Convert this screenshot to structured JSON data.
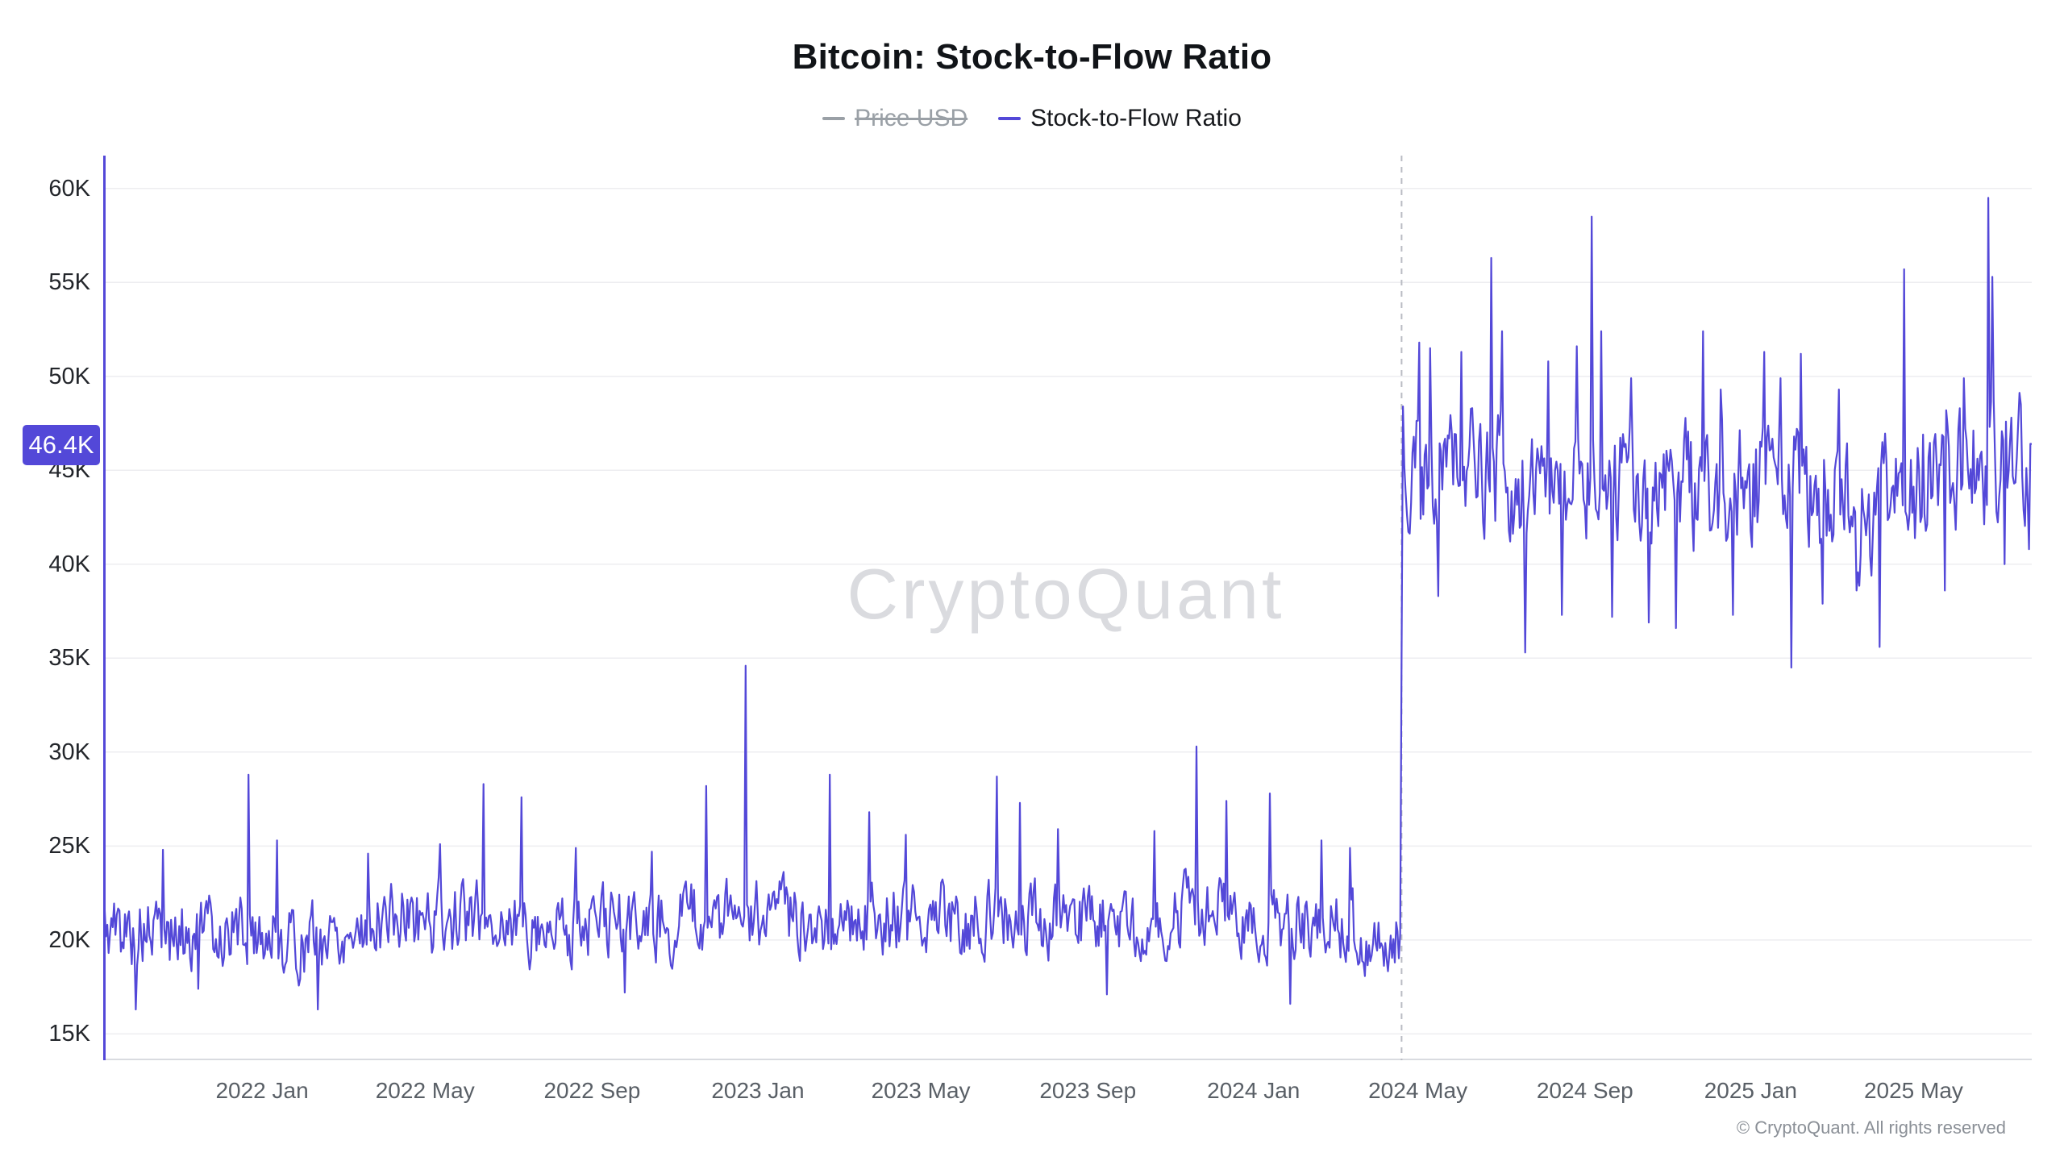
{
  "footer": {
    "copyright": "© CryptoQuant. All rights reserved"
  },
  "watermark": {
    "text": "CryptoQuant"
  },
  "chart_data": {
    "type": "line",
    "title": "Bitcoin: Stock-to-Flow Ratio",
    "xlabel": "",
    "ylabel": "",
    "grid": "horizontal",
    "legend_position": "top",
    "colors": {
      "line": "#5348d8",
      "disabled_legend": "#9aa0a6",
      "grid": "#ededf0",
      "axis_bottom": "#d9dbe0",
      "halving_line": "#b9bcc3",
      "watermark": "#dadbdf"
    },
    "legend": [
      {
        "label": "Price USD",
        "color": "#9aa0a6",
        "disabled": true
      },
      {
        "label": "Stock-to-Flow Ratio",
        "color": "#5348d8",
        "disabled": false
      }
    ],
    "ylim": [
      13600,
      61750
    ],
    "y_ticks": [
      {
        "value": 15000,
        "label": "15K"
      },
      {
        "value": 20000,
        "label": "20K"
      },
      {
        "value": 25000,
        "label": "25K"
      },
      {
        "value": 30000,
        "label": "30K"
      },
      {
        "value": 35000,
        "label": "35K"
      },
      {
        "value": 40000,
        "label": "40K"
      },
      {
        "value": 45000,
        "label": "45K"
      },
      {
        "value": 50000,
        "label": "50K"
      },
      {
        "value": 55000,
        "label": "55K"
      },
      {
        "value": 60000,
        "label": "60K"
      }
    ],
    "x_range": {
      "start": "2021-09-06",
      "end": "2025-07-27"
    },
    "x_ticks": [
      {
        "date": "2022-01-01",
        "label": "2022 Jan"
      },
      {
        "date": "2022-05-01",
        "label": "2022 May"
      },
      {
        "date": "2022-09-01",
        "label": "2022 Sep"
      },
      {
        "date": "2023-01-01",
        "label": "2023 Jan"
      },
      {
        "date": "2023-05-01",
        "label": "2023 May"
      },
      {
        "date": "2023-09-01",
        "label": "2023 Sep"
      },
      {
        "date": "2024-01-01",
        "label": "2024 Jan"
      },
      {
        "date": "2024-05-01",
        "label": "2024 May"
      },
      {
        "date": "2024-09-01",
        "label": "2024 Sep"
      },
      {
        "date": "2025-01-01",
        "label": "2025 Jan"
      },
      {
        "date": "2025-05-01",
        "label": "2025 May"
      }
    ],
    "annotations": {
      "halving_dashed_line_date": "2024-04-19",
      "last_value_label": "46.4K",
      "last_value": 46400
    },
    "series": [
      {
        "name": "Stock-to-Flow Ratio",
        "color": "#5348d8",
        "visible": true,
        "baseline_anchors": [
          {
            "date": "2021-09-06",
            "value": 20600
          },
          {
            "date": "2021-11-01",
            "value": 20200
          },
          {
            "date": "2021-12-15",
            "value": 20600
          },
          {
            "date": "2022-02-01",
            "value": 19800
          },
          {
            "date": "2022-04-01",
            "value": 21200
          },
          {
            "date": "2022-06-01",
            "value": 21200
          },
          {
            "date": "2022-08-01",
            "value": 20700
          },
          {
            "date": "2022-10-01",
            "value": 20900
          },
          {
            "date": "2022-12-01",
            "value": 21200
          },
          {
            "date": "2023-02-01",
            "value": 21100
          },
          {
            "date": "2023-04-01",
            "value": 21200
          },
          {
            "date": "2023-06-01",
            "value": 21300
          },
          {
            "date": "2023-08-01",
            "value": 21000
          },
          {
            "date": "2023-10-01",
            "value": 20900
          },
          {
            "date": "2023-12-01",
            "value": 21600
          },
          {
            "date": "2024-02-01",
            "value": 21100
          },
          {
            "date": "2024-04-19",
            "value": 19800
          },
          {
            "date": "2024-04-20",
            "value": 44800
          },
          {
            "date": "2024-06-15",
            "value": 45200
          },
          {
            "date": "2024-08-01",
            "value": 43200
          },
          {
            "date": "2024-10-01",
            "value": 44600
          },
          {
            "date": "2024-12-01",
            "value": 43800
          },
          {
            "date": "2025-02-01",
            "value": 44200
          },
          {
            "date": "2025-04-01",
            "value": 42800
          },
          {
            "date": "2025-06-01",
            "value": 44800
          },
          {
            "date": "2025-07-27",
            "value": 46000
          }
        ],
        "noise": {
          "seed": 5,
          "pre_amp": 1650,
          "post_amp": 2850,
          "pre_clamp": [
            16200,
            28000
          ],
          "post_clamp": [
            35200,
            55000
          ]
        },
        "spikes": [
          {
            "date": "2021-09-30",
            "value": 16300
          },
          {
            "date": "2021-10-20",
            "value": 24800
          },
          {
            "date": "2021-11-15",
            "value": 17400
          },
          {
            "date": "2021-12-22",
            "value": 28800
          },
          {
            "date": "2022-01-12",
            "value": 25300
          },
          {
            "date": "2022-02-11",
            "value": 16300
          },
          {
            "date": "2022-03-20",
            "value": 24600
          },
          {
            "date": "2022-05-12",
            "value": 25100
          },
          {
            "date": "2022-06-13",
            "value": 28300
          },
          {
            "date": "2022-07-11",
            "value": 27600
          },
          {
            "date": "2022-08-20",
            "value": 24900
          },
          {
            "date": "2022-09-25",
            "value": 17200
          },
          {
            "date": "2022-10-15",
            "value": 24700
          },
          {
            "date": "2022-11-24",
            "value": 28200
          },
          {
            "date": "2022-12-23",
            "value": 34600
          },
          {
            "date": "2023-02-23",
            "value": 28800
          },
          {
            "date": "2023-03-24",
            "value": 26800
          },
          {
            "date": "2023-04-20",
            "value": 25600
          },
          {
            "date": "2023-06-26",
            "value": 28700
          },
          {
            "date": "2023-07-13",
            "value": 27300
          },
          {
            "date": "2023-08-10",
            "value": 25900
          },
          {
            "date": "2023-09-15",
            "value": 17100
          },
          {
            "date": "2023-10-20",
            "value": 25800
          },
          {
            "date": "2023-11-20",
            "value": 30300
          },
          {
            "date": "2023-12-12",
            "value": 27400
          },
          {
            "date": "2024-01-13",
            "value": 27800
          },
          {
            "date": "2024-01-28",
            "value": 16600
          },
          {
            "date": "2024-02-20",
            "value": 25300
          },
          {
            "date": "2024-03-12",
            "value": 24900
          },
          {
            "date": "2024-04-14",
            "value": 18800
          },
          {
            "date": "2024-04-20",
            "value": 48400
          },
          {
            "date": "2024-05-02",
            "value": 51800
          },
          {
            "date": "2024-05-10",
            "value": 51500
          },
          {
            "date": "2024-05-16",
            "value": 38300
          },
          {
            "date": "2024-06-02",
            "value": 51300
          },
          {
            "date": "2024-06-24",
            "value": 56300
          },
          {
            "date": "2024-07-02",
            "value": 52400
          },
          {
            "date": "2024-07-19",
            "value": 35300
          },
          {
            "date": "2024-08-05",
            "value": 50800
          },
          {
            "date": "2024-08-15",
            "value": 37300
          },
          {
            "date": "2024-08-26",
            "value": 51600
          },
          {
            "date": "2024-09-06",
            "value": 58500
          },
          {
            "date": "2024-09-13",
            "value": 52400
          },
          {
            "date": "2024-09-21",
            "value": 37200
          },
          {
            "date": "2024-10-05",
            "value": 49900
          },
          {
            "date": "2024-10-18",
            "value": 36900
          },
          {
            "date": "2024-11-07",
            "value": 36600
          },
          {
            "date": "2024-11-27",
            "value": 52400
          },
          {
            "date": "2024-12-10",
            "value": 49300
          },
          {
            "date": "2024-12-19",
            "value": 37300
          },
          {
            "date": "2025-01-11",
            "value": 51300
          },
          {
            "date": "2025-01-23",
            "value": 49900
          },
          {
            "date": "2025-01-31",
            "value": 34500
          },
          {
            "date": "2025-02-07",
            "value": 51200
          },
          {
            "date": "2025-02-23",
            "value": 37900
          },
          {
            "date": "2025-03-07",
            "value": 49300
          },
          {
            "date": "2025-03-20",
            "value": 38600
          },
          {
            "date": "2025-04-06",
            "value": 35600
          },
          {
            "date": "2025-04-24",
            "value": 55700
          },
          {
            "date": "2025-05-08",
            "value": 46900
          },
          {
            "date": "2025-05-24",
            "value": 38600
          },
          {
            "date": "2025-06-07",
            "value": 49900
          },
          {
            "date": "2025-06-25",
            "value": 59500
          },
          {
            "date": "2025-06-28",
            "value": 55300
          },
          {
            "date": "2025-07-07",
            "value": 40000
          },
          {
            "date": "2025-07-19",
            "value": 48500
          },
          {
            "date": "2025-07-25",
            "value": 40800
          }
        ]
      },
      {
        "name": "Price USD",
        "color": "#9aa0a6",
        "visible": false
      }
    ]
  }
}
